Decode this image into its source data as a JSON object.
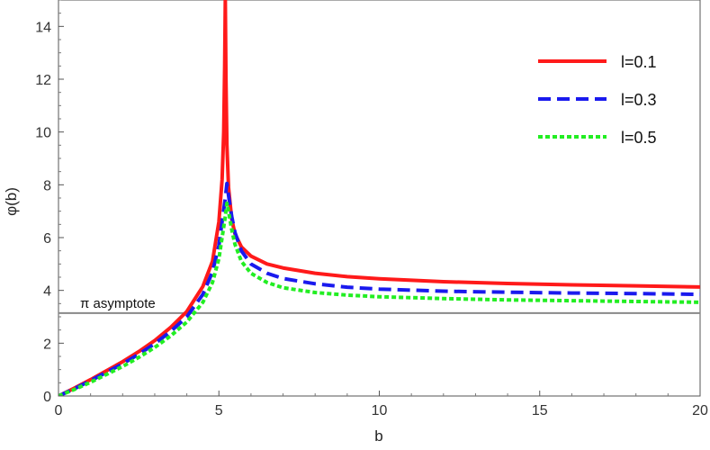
{
  "chart_data": {
    "type": "line",
    "title": "",
    "xlabel": "b",
    "ylabel": "φ(b)",
    "xlim": [
      0,
      20
    ],
    "ylim": [
      0,
      15
    ],
    "xticks": [
      0,
      5,
      10,
      15,
      20
    ],
    "xtick_labels": [
      "0",
      "5",
      "10",
      "15",
      "20"
    ],
    "yticks": [
      0,
      2,
      4,
      6,
      8,
      10,
      12,
      14
    ],
    "ytick_labels": [
      "0",
      "2",
      "4",
      "6",
      "8",
      "10",
      "12",
      "14"
    ],
    "grid": false,
    "legend_position": "top-right",
    "series": [
      {
        "name": "l=0.1",
        "color": "#ff1a1a",
        "style": "solid",
        "x": [
          0,
          0.5,
          1,
          1.5,
          2,
          2.5,
          3,
          3.5,
          4,
          4.5,
          4.8,
          5.0,
          5.1,
          5.15,
          5.18,
          5.2,
          5.22,
          5.25,
          5.3,
          5.4,
          5.5,
          5.7,
          6,
          6.5,
          7,
          8,
          9,
          10,
          12,
          14,
          16,
          18,
          20
        ],
        "y": [
          0,
          0.3,
          0.62,
          0.96,
          1.3,
          1.68,
          2.1,
          2.6,
          3.2,
          4.15,
          5.1,
          6.6,
          8.2,
          10,
          12.5,
          15,
          12,
          9.5,
          7.9,
          6.7,
          6.15,
          5.65,
          5.3,
          5.0,
          4.85,
          4.65,
          4.52,
          4.44,
          4.33,
          4.26,
          4.21,
          4.17,
          4.13
        ]
      },
      {
        "name": "l=0.3",
        "color": "#1a1aee",
        "style": "dashed",
        "x": [
          0,
          0.5,
          1,
          1.5,
          2,
          2.5,
          3,
          3.5,
          4,
          4.5,
          4.8,
          5.0,
          5.1,
          5.2,
          5.25,
          5.3,
          5.4,
          5.5,
          5.7,
          6,
          6.5,
          7,
          8,
          9,
          10,
          12,
          14,
          16,
          18,
          20
        ],
        "y": [
          0,
          0.28,
          0.58,
          0.9,
          1.22,
          1.58,
          1.98,
          2.45,
          3.0,
          3.85,
          4.7,
          5.7,
          6.6,
          7.5,
          8.05,
          7.6,
          6.8,
          6.2,
          5.5,
          5.0,
          4.65,
          4.45,
          4.25,
          4.12,
          4.05,
          3.97,
          3.93,
          3.9,
          3.88,
          3.85
        ]
      },
      {
        "name": "l=0.5",
        "color": "#22ee22",
        "style": "dotted",
        "x": [
          0,
          0.5,
          1,
          1.5,
          2,
          2.5,
          3,
          3.5,
          4,
          4.5,
          4.8,
          5.0,
          5.1,
          5.2,
          5.25,
          5.3,
          5.4,
          5.5,
          5.7,
          6,
          6.5,
          7,
          8,
          9,
          10,
          12,
          14,
          16,
          18,
          20
        ],
        "y": [
          0,
          0.25,
          0.52,
          0.82,
          1.12,
          1.46,
          1.84,
          2.28,
          2.8,
          3.55,
          4.3,
          5.2,
          6.0,
          6.8,
          7.3,
          7.0,
          6.3,
          5.75,
          5.1,
          4.65,
          4.3,
          4.1,
          3.92,
          3.82,
          3.76,
          3.69,
          3.64,
          3.61,
          3.58,
          3.55
        ]
      }
    ],
    "reference_line": {
      "y": 3.14159,
      "label": "π asymptote",
      "color": "#888888"
    }
  }
}
